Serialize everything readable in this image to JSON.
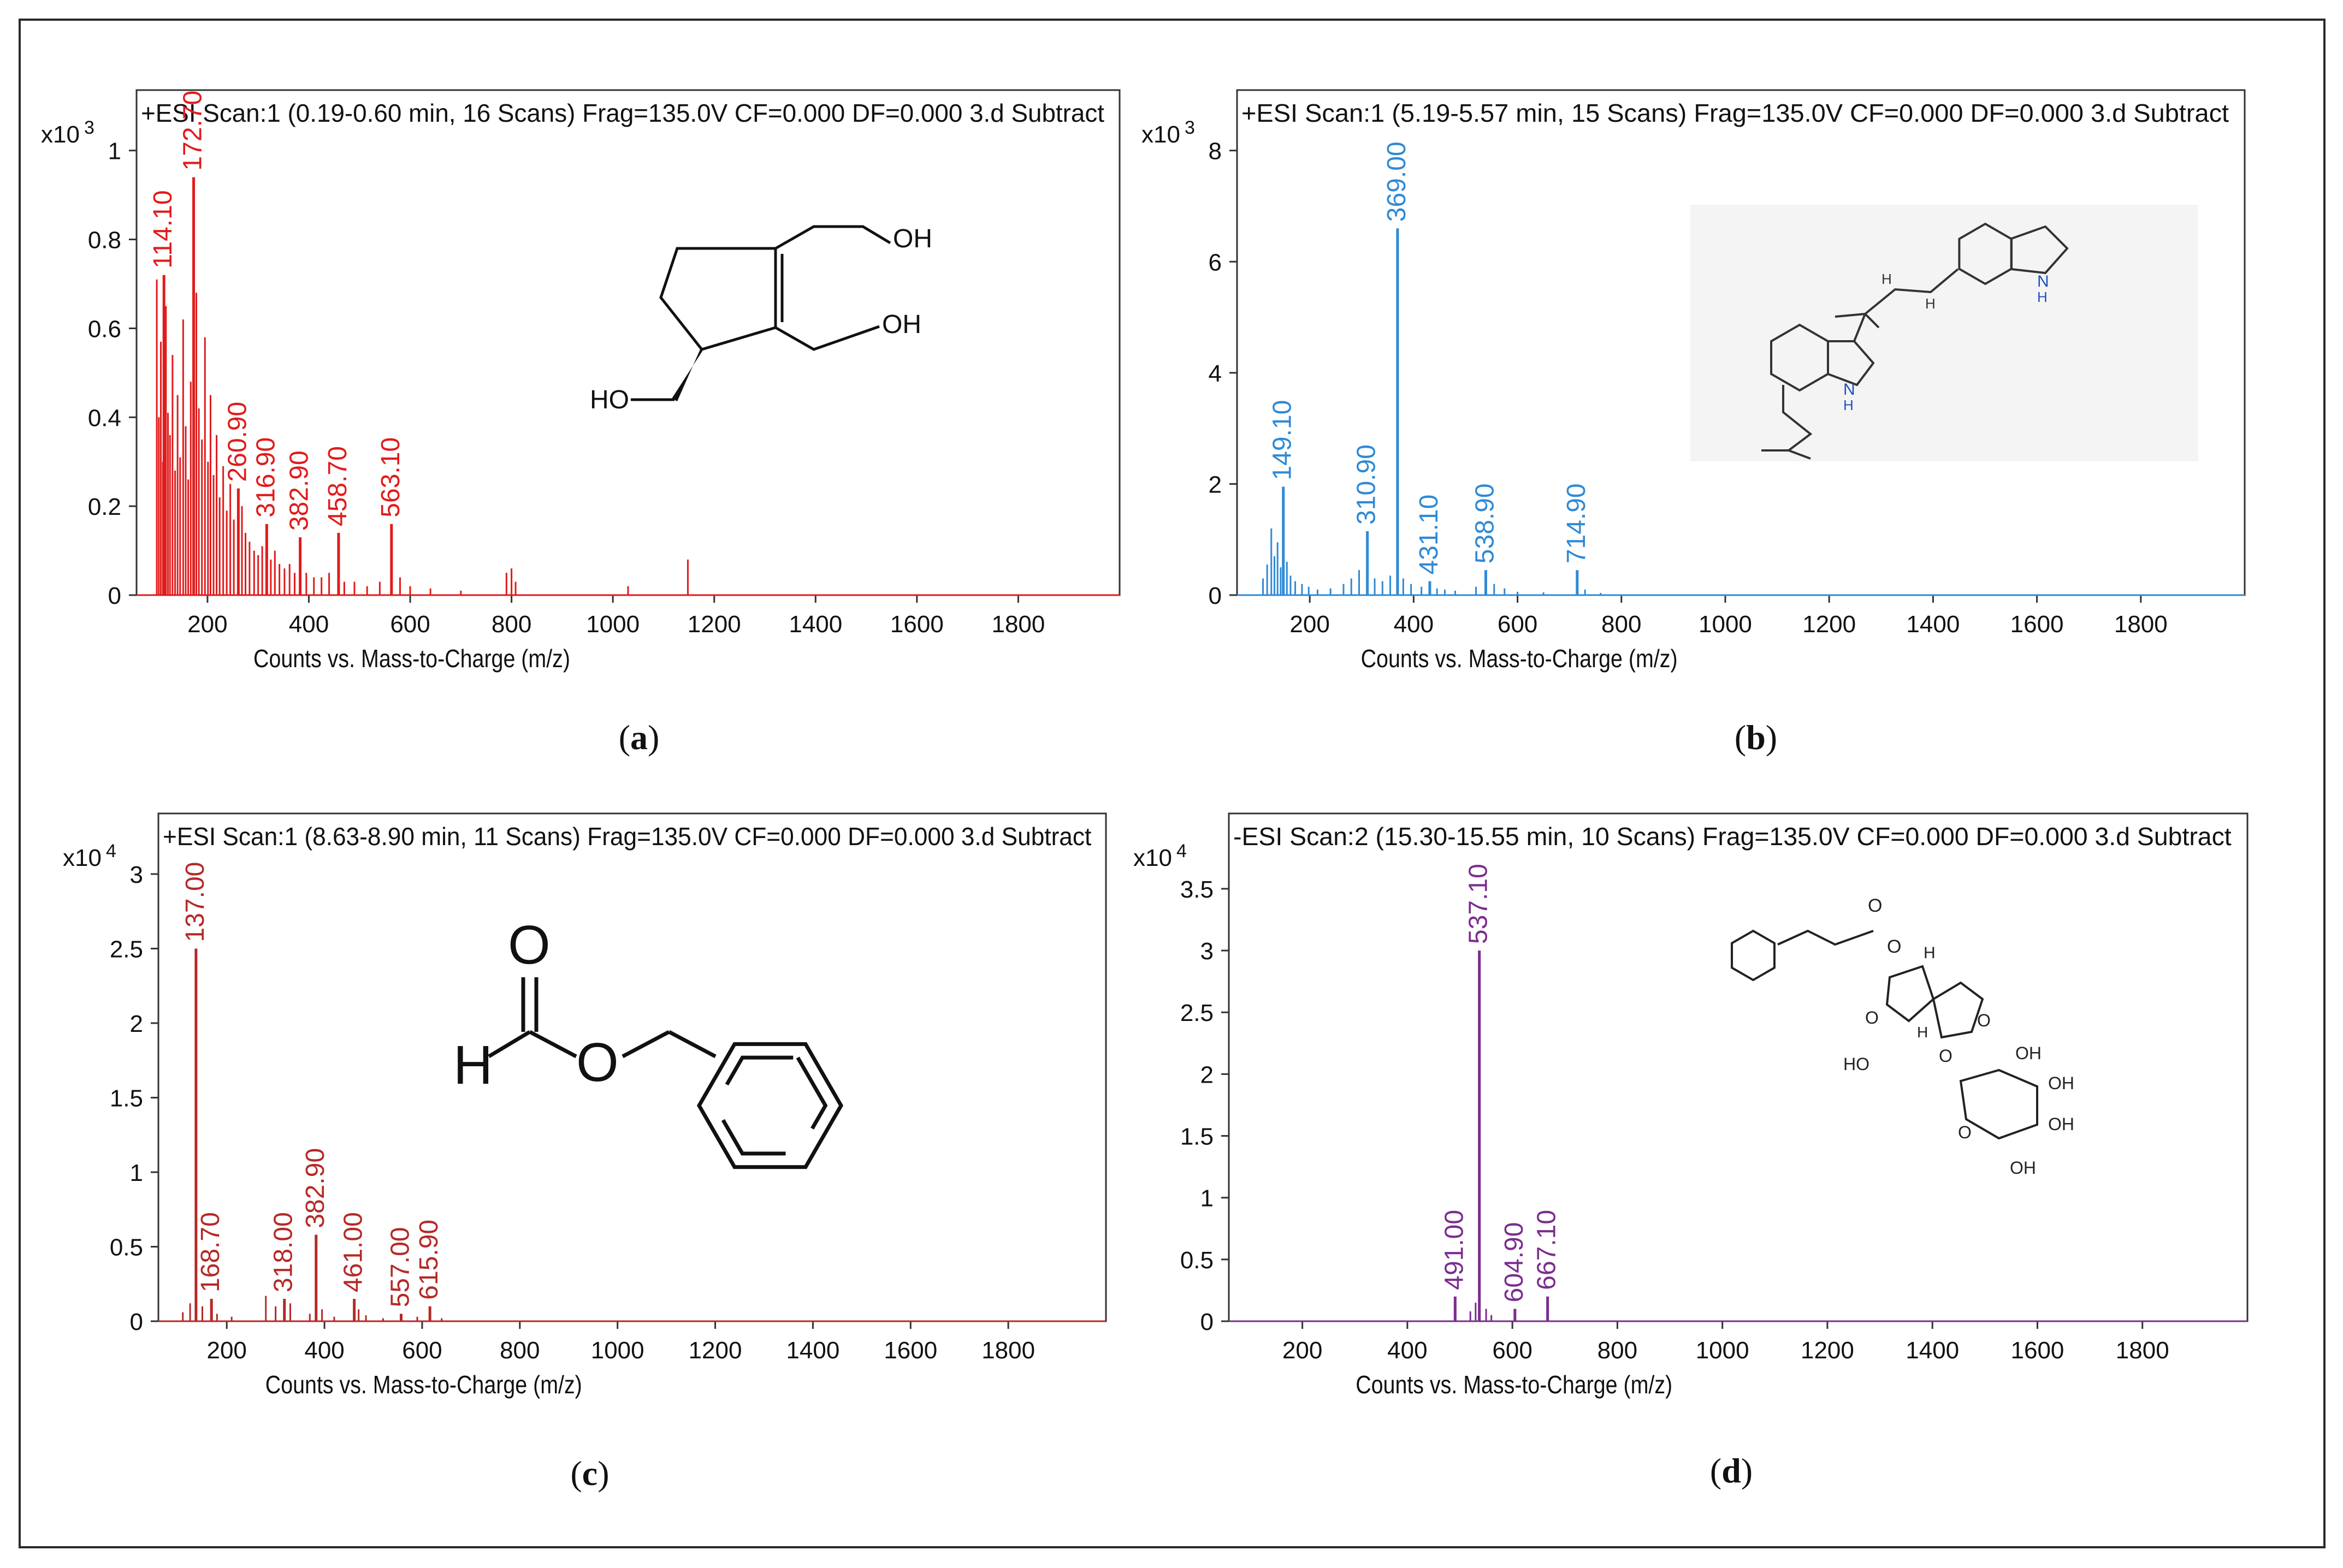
{
  "chart_data": [
    {
      "type": "bar",
      "panel_label": "a",
      "header": "+ESI Scan:1 (0.19-0.60 min, 16 Scans) Frag=135.0V CF=0.000 DF=0.000 3.d  Subtract",
      "xlabel": "Counts vs. Mass-to-Charge (m/z)",
      "y_multiplier_base": "x10",
      "y_multiplier_exp": "3",
      "xlim": [
        60,
        2000
      ],
      "ylim": [
        0,
        1.05
      ],
      "x_ticks": [
        200,
        400,
        600,
        800,
        1000,
        1200,
        1400,
        1600,
        1800
      ],
      "y_ticks": [
        0,
        0.2,
        0.4,
        0.6,
        0.8,
        1
      ],
      "y_tick_labels": [
        "0",
        "0.2",
        "0.4",
        "0.6",
        "0.8",
        "1"
      ],
      "color": "#e11b1b",
      "peak_labels": [
        {
          "x": 114.1,
          "y": 0.72,
          "label": "114.10"
        },
        {
          "x": 172.7,
          "y": 0.94,
          "label": "172.70"
        },
        {
          "x": 260.9,
          "y": 0.24,
          "label": "260.90"
        },
        {
          "x": 316.9,
          "y": 0.16,
          "label": "316.90"
        },
        {
          "x": 382.9,
          "y": 0.13,
          "label": "382.90"
        },
        {
          "x": 458.7,
          "y": 0.14,
          "label": "458.70"
        },
        {
          "x": 563.1,
          "y": 0.16,
          "label": "563.10"
        }
      ],
      "minor_peaks": [
        [
          100,
          0.71
        ],
        [
          104,
          0.4
        ],
        [
          108,
          0.57
        ],
        [
          112,
          0.3
        ],
        [
          118,
          0.65
        ],
        [
          122,
          0.41
        ],
        [
          126,
          0.36
        ],
        [
          131,
          0.54
        ],
        [
          136,
          0.28
        ],
        [
          141,
          0.45
        ],
        [
          146,
          0.31
        ],
        [
          152,
          0.62
        ],
        [
          157,
          0.38
        ],
        [
          162,
          0.26
        ],
        [
          167,
          0.48
        ],
        [
          178,
          0.68
        ],
        [
          183,
          0.42
        ],
        [
          189,
          0.35
        ],
        [
          195,
          0.58
        ],
        [
          201,
          0.3
        ],
        [
          206,
          0.45
        ],
        [
          212,
          0.27
        ],
        [
          218,
          0.36
        ],
        [
          224,
          0.22
        ],
        [
          231,
          0.29
        ],
        [
          238,
          0.19
        ],
        [
          245,
          0.25
        ],
        [
          252,
          0.17
        ],
        [
          268,
          0.2
        ],
        [
          275,
          0.14
        ],
        [
          283,
          0.12
        ],
        [
          292,
          0.1
        ],
        [
          300,
          0.09
        ],
        [
          308,
          0.11
        ],
        [
          325,
          0.08
        ],
        [
          333,
          0.1
        ],
        [
          342,
          0.07
        ],
        [
          352,
          0.06
        ],
        [
          362,
          0.07
        ],
        [
          372,
          0.05
        ],
        [
          395,
          0.05
        ],
        [
          410,
          0.04
        ],
        [
          425,
          0.04
        ],
        [
          440,
          0.05
        ],
        [
          470,
          0.03
        ],
        [
          490,
          0.03
        ],
        [
          515,
          0.02
        ],
        [
          540,
          0.03
        ],
        [
          580,
          0.04
        ],
        [
          600,
          0.02
        ],
        [
          640,
          0.015
        ],
        [
          700,
          0.01
        ],
        [
          790,
          0.05
        ],
        [
          800,
          0.06
        ],
        [
          808,
          0.03
        ],
        [
          1030,
          0.02
        ],
        [
          1148,
          0.08
        ]
      ],
      "structure": {
        "type": "diol",
        "labels": [
          "OH",
          "OH",
          "HO"
        ]
      }
    },
    {
      "type": "bar",
      "panel_label": "b",
      "header": "+ESI Scan:1 (5.19-5.57 min, 15 Scans) Frag=135.0V CF=0.000 DF=0.000 3.d  Subtract",
      "xlabel": "Counts vs. Mass-to-Charge (m/z)",
      "y_multiplier_base": "x10",
      "y_multiplier_exp": "3",
      "xlim": [
        60,
        2000
      ],
      "ylim": [
        0,
        8.4
      ],
      "x_ticks": [
        200,
        400,
        600,
        800,
        1000,
        1200,
        1400,
        1600,
        1800
      ],
      "y_ticks": [
        0,
        2,
        4,
        6,
        8
      ],
      "y_tick_labels": [
        "0",
        "2",
        "4",
        "6",
        "8"
      ],
      "color": "#2f8ad6",
      "peak_labels": [
        {
          "x": 149.1,
          "y": 1.95,
          "label": "149.10"
        },
        {
          "x": 310.9,
          "y": 1.15,
          "label": "310.90"
        },
        {
          "x": 369.0,
          "y": 6.6,
          "label": "369.00"
        },
        {
          "x": 431.1,
          "y": 0.25,
          "label": "431.10"
        },
        {
          "x": 538.9,
          "y": 0.45,
          "label": "538.90"
        },
        {
          "x": 714.9,
          "y": 0.45,
          "label": "714.90"
        }
      ],
      "minor_peaks": [
        [
          110,
          0.3
        ],
        [
          118,
          0.55
        ],
        [
          126,
          1.2
        ],
        [
          132,
          0.7
        ],
        [
          138,
          0.95
        ],
        [
          144,
          0.5
        ],
        [
          156,
          0.6
        ],
        [
          163,
          0.35
        ],
        [
          172,
          0.25
        ],
        [
          185,
          0.2
        ],
        [
          198,
          0.15
        ],
        [
          215,
          0.1
        ],
        [
          240,
          0.12
        ],
        [
          265,
          0.2
        ],
        [
          280,
          0.3
        ],
        [
          295,
          0.45
        ],
        [
          325,
          0.3
        ],
        [
          340,
          0.25
        ],
        [
          355,
          0.35
        ],
        [
          380,
          0.3
        ],
        [
          395,
          0.2
        ],
        [
          415,
          0.15
        ],
        [
          445,
          0.12
        ],
        [
          460,
          0.1
        ],
        [
          480,
          0.08
        ],
        [
          520,
          0.15
        ],
        [
          555,
          0.2
        ],
        [
          575,
          0.12
        ],
        [
          600,
          0.06
        ],
        [
          650,
          0.05
        ],
        [
          730,
          0.1
        ],
        [
          760,
          0.04
        ]
      ],
      "structure": {
        "type": "indole",
        "labels": [
          "N",
          "H",
          "N",
          "H",
          "H",
          "H"
        ]
      }
    },
    {
      "type": "bar",
      "panel_label": "c",
      "header": "+ESI Scan:1 (8.63-8.90 min, 11 Scans) Frag=135.0V CF=0.000 DF=0.000 3.d  Subtract",
      "xlabel": "Counts vs. Mass-to-Charge (m/z)",
      "y_multiplier_base": "x10",
      "y_multiplier_exp": "4",
      "xlim": [
        60,
        2000
      ],
      "ylim": [
        0,
        3.15
      ],
      "x_ticks": [
        200,
        400,
        600,
        800,
        1000,
        1200,
        1400,
        1600,
        1800
      ],
      "y_ticks": [
        0,
        0.5,
        1,
        1.5,
        2,
        2.5,
        3
      ],
      "y_tick_labels": [
        "0",
        "0.5",
        "1",
        "1.5",
        "2",
        "2.5",
        "3"
      ],
      "color": "#b42a26",
      "peak_labels": [
        {
          "x": 137.0,
          "y": 2.5,
          "label": "137.00"
        },
        {
          "x": 168.7,
          "y": 0.15,
          "label": "168.70"
        },
        {
          "x": 318.0,
          "y": 0.15,
          "label": "318.00"
        },
        {
          "x": 382.9,
          "y": 0.58,
          "label": "382.90"
        },
        {
          "x": 461.0,
          "y": 0.15,
          "label": "461.00"
        },
        {
          "x": 557.0,
          "y": 0.05,
          "label": "557.00"
        },
        {
          "x": 615.9,
          "y": 0.1,
          "label": "615.90"
        }
      ],
      "minor_peaks": [
        [
          110,
          0.06
        ],
        [
          125,
          0.12
        ],
        [
          150,
          0.1
        ],
        [
          180,
          0.05
        ],
        [
          210,
          0.03
        ],
        [
          280,
          0.17
        ],
        [
          300,
          0.1
        ],
        [
          330,
          0.12
        ],
        [
          370,
          0.05
        ],
        [
          395,
          0.08
        ],
        [
          420,
          0.03
        ],
        [
          470,
          0.08
        ],
        [
          485,
          0.04
        ],
        [
          520,
          0.02
        ],
        [
          590,
          0.03
        ],
        [
          640,
          0.02
        ]
      ],
      "structure": {
        "type": "benzyl_formate",
        "labels": [
          "O",
          "H",
          "O"
        ]
      }
    },
    {
      "type": "bar",
      "panel_label": "d",
      "header": "-ESI Scan:2 (15.30-15.55 min, 10 Scans) Frag=135.0V CF=0.000 DF=0.000 3.d  Subtract",
      "xlabel": "Counts vs. Mass-to-Charge (m/z)",
      "y_multiplier_base": "x10",
      "y_multiplier_exp": "4",
      "xlim": [
        60,
        2000
      ],
      "ylim": [
        0,
        3.8
      ],
      "x_ticks": [
        200,
        400,
        600,
        800,
        1000,
        1200,
        1400,
        1600,
        1800
      ],
      "y_ticks": [
        0,
        0.5,
        1,
        1.5,
        2,
        2.5,
        3,
        3.5
      ],
      "y_tick_labels": [
        "0",
        "0.5",
        "1",
        "1.5",
        "2",
        "2.5",
        "3",
        "3.5"
      ],
      "color": "#7b2d8e",
      "peak_labels": [
        {
          "x": 491.0,
          "y": 0.2,
          "label": "491.00"
        },
        {
          "x": 537.1,
          "y": 3.0,
          "label": "537.10"
        },
        {
          "x": 604.9,
          "y": 0.1,
          "label": "604.90"
        },
        {
          "x": 667.1,
          "y": 0.2,
          "label": "667.10"
        }
      ],
      "minor_peaks": [
        [
          520,
          0.08
        ],
        [
          530,
          0.15
        ],
        [
          550,
          0.1
        ],
        [
          560,
          0.05
        ]
      ],
      "structure": {
        "type": "glycoside",
        "labels": [
          "O",
          "O",
          "H",
          "O",
          "O",
          "H",
          "O",
          "HO",
          "O",
          "OH",
          "OH",
          "O",
          "OH",
          "OH"
        ]
      }
    }
  ]
}
